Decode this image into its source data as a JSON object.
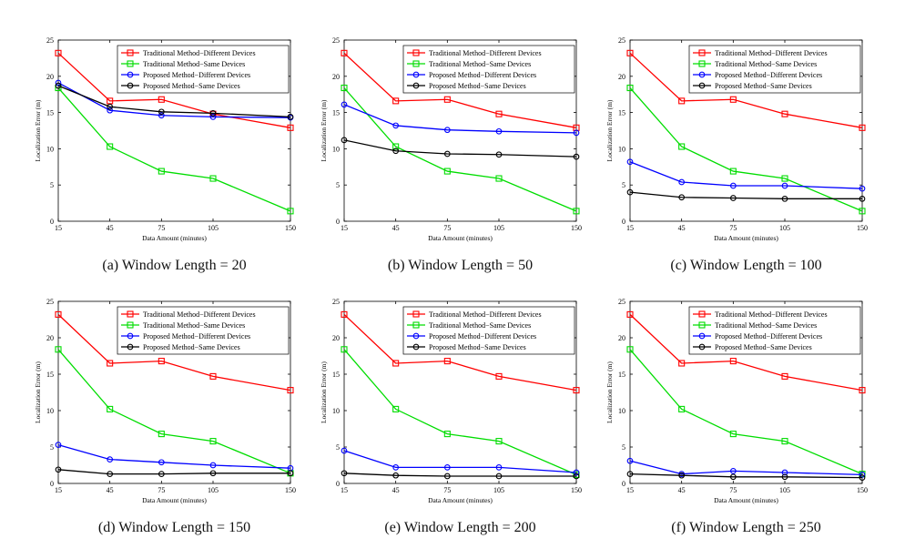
{
  "chart_data": [
    {
      "type": "line",
      "caption": "(a) Window Length = 20",
      "xlabel": "Data Amount (minutes)",
      "ylabel": "Localization Error (m)",
      "x": [
        15,
        45,
        75,
        105,
        150
      ],
      "xlim": [
        15,
        150
      ],
      "ylim": [
        0,
        25
      ],
      "yticks": [
        0,
        5,
        10,
        15,
        20,
        25
      ],
      "grid": false,
      "legend_position": "top-right",
      "series": [
        {
          "name": "Traditional Method−Different Devices",
          "color": "#ff0000",
          "marker": "square",
          "values": [
            23.2,
            16.6,
            16.8,
            14.8,
            12.9
          ]
        },
        {
          "name": "Traditional Method−Same Devices",
          "color": "#00dd00",
          "marker": "square",
          "values": [
            18.4,
            10.3,
            6.9,
            5.9,
            1.4
          ]
        },
        {
          "name": "Proposed Method−Different Devices",
          "color": "#0000ff",
          "marker": "circle",
          "values": [
            19.1,
            15.3,
            14.6,
            14.4,
            14.3
          ]
        },
        {
          "name": "Proposed Method−Same Devices",
          "color": "#000000",
          "marker": "circle",
          "values": [
            18.7,
            15.8,
            15.1,
            14.9,
            14.4
          ]
        }
      ]
    },
    {
      "type": "line",
      "caption": "(b) Window Length = 50",
      "xlabel": "Data Amount (minutes)",
      "ylabel": "Localization Error (m)",
      "x": [
        15,
        45,
        75,
        105,
        150
      ],
      "xlim": [
        15,
        150
      ],
      "ylim": [
        0,
        25
      ],
      "yticks": [
        0,
        5,
        10,
        15,
        20,
        25
      ],
      "grid": false,
      "legend_position": "top-right",
      "series": [
        {
          "name": "Traditional Method−Different Devices",
          "color": "#ff0000",
          "marker": "square",
          "values": [
            23.2,
            16.6,
            16.8,
            14.8,
            12.9
          ]
        },
        {
          "name": "Traditional Method−Same Devices",
          "color": "#00dd00",
          "marker": "square",
          "values": [
            18.4,
            10.3,
            6.9,
            5.9,
            1.4
          ]
        },
        {
          "name": "Proposed Method−Different Devices",
          "color": "#0000ff",
          "marker": "circle",
          "values": [
            16.1,
            13.2,
            12.6,
            12.4,
            12.2
          ]
        },
        {
          "name": "Proposed Method−Same Devices",
          "color": "#000000",
          "marker": "circle",
          "values": [
            11.2,
            9.7,
            9.3,
            9.2,
            8.9
          ]
        }
      ]
    },
    {
      "type": "line",
      "caption": "(c) Window Length = 100",
      "xlabel": "Data Amount (minutes)",
      "ylabel": "Localization Error (m)",
      "x": [
        15,
        45,
        75,
        105,
        150
      ],
      "xlim": [
        15,
        150
      ],
      "ylim": [
        0,
        25
      ],
      "yticks": [
        0,
        5,
        10,
        15,
        20,
        25
      ],
      "grid": false,
      "legend_position": "top-right",
      "series": [
        {
          "name": "Traditional Method−Different Devices",
          "color": "#ff0000",
          "marker": "square",
          "values": [
            23.2,
            16.6,
            16.8,
            14.8,
            12.9
          ]
        },
        {
          "name": "Traditional Method−Same Devices",
          "color": "#00dd00",
          "marker": "square",
          "values": [
            18.4,
            10.3,
            6.9,
            5.9,
            1.4
          ]
        },
        {
          "name": "Proposed Method−Different Devices",
          "color": "#0000ff",
          "marker": "circle",
          "values": [
            8.2,
            5.4,
            4.9,
            4.9,
            4.5
          ]
        },
        {
          "name": "Proposed Method−Same Devices",
          "color": "#000000",
          "marker": "circle",
          "values": [
            4.0,
            3.3,
            3.2,
            3.1,
            3.1
          ]
        }
      ]
    },
    {
      "type": "line",
      "caption": "(d) Window Length = 150",
      "xlabel": "Data Amount (minutes)",
      "ylabel": "Localization Error (m)",
      "x": [
        15,
        45,
        75,
        105,
        150
      ],
      "xlim": [
        15,
        150
      ],
      "ylim": [
        0,
        25
      ],
      "yticks": [
        0,
        5,
        10,
        15,
        20,
        25
      ],
      "grid": false,
      "legend_position": "top-right",
      "series": [
        {
          "name": "Traditional Method−Different Devices",
          "color": "#ff0000",
          "marker": "square",
          "values": [
            23.2,
            16.5,
            16.8,
            14.7,
            12.8
          ]
        },
        {
          "name": "Traditional Method−Same Devices",
          "color": "#00dd00",
          "marker": "square",
          "values": [
            18.4,
            10.2,
            6.8,
            5.8,
            1.4
          ]
        },
        {
          "name": "Proposed Method−Different Devices",
          "color": "#0000ff",
          "marker": "circle",
          "values": [
            5.3,
            3.3,
            2.9,
            2.5,
            2.1
          ]
        },
        {
          "name": "Proposed Method−Same Devices",
          "color": "#000000",
          "marker": "circle",
          "values": [
            1.9,
            1.3,
            1.3,
            1.4,
            1.4
          ]
        }
      ]
    },
    {
      "type": "line",
      "caption": "(e) Window Length = 200",
      "xlabel": "Data Amount (minutes)",
      "ylabel": "Localization Error (m)",
      "x": [
        15,
        45,
        75,
        105,
        150
      ],
      "xlim": [
        15,
        150
      ],
      "ylim": [
        0,
        25
      ],
      "yticks": [
        0,
        5,
        10,
        15,
        20,
        25
      ],
      "grid": false,
      "legend_position": "top-right",
      "series": [
        {
          "name": "Traditional Method−Different Devices",
          "color": "#ff0000",
          "marker": "square",
          "values": [
            23.2,
            16.5,
            16.8,
            14.7,
            12.8
          ]
        },
        {
          "name": "Traditional Method−Same Devices",
          "color": "#00dd00",
          "marker": "square",
          "values": [
            18.4,
            10.2,
            6.8,
            5.8,
            1.2
          ]
        },
        {
          "name": "Proposed Method−Different Devices",
          "color": "#0000ff",
          "marker": "circle",
          "values": [
            4.5,
            2.2,
            2.2,
            2.2,
            1.5
          ]
        },
        {
          "name": "Proposed Method−Same Devices",
          "color": "#000000",
          "marker": "circle",
          "values": [
            1.4,
            1.1,
            1.0,
            1.0,
            1.0
          ]
        }
      ]
    },
    {
      "type": "line",
      "caption": "(f) Window Length = 250",
      "xlabel": "Data Amount (minutes)",
      "ylabel": "Localization Error (m)",
      "x": [
        15,
        45,
        75,
        105,
        150
      ],
      "xlim": [
        15,
        150
      ],
      "ylim": [
        0,
        25
      ],
      "yticks": [
        0,
        5,
        10,
        15,
        20,
        25
      ],
      "grid": false,
      "legend_position": "top-right",
      "series": [
        {
          "name": "Traditional Method−Different Devices",
          "color": "#ff0000",
          "marker": "square",
          "values": [
            23.2,
            16.5,
            16.8,
            14.7,
            12.8
          ]
        },
        {
          "name": "Traditional Method−Same Devices",
          "color": "#00dd00",
          "marker": "square",
          "values": [
            18.4,
            10.2,
            6.8,
            5.8,
            1.3
          ]
        },
        {
          "name": "Proposed Method−Different Devices",
          "color": "#0000ff",
          "marker": "circle",
          "values": [
            3.1,
            1.3,
            1.7,
            1.5,
            1.2
          ]
        },
        {
          "name": "Proposed Method−Same Devices",
          "color": "#000000",
          "marker": "circle",
          "values": [
            1.3,
            1.1,
            0.9,
            0.9,
            0.8
          ]
        }
      ]
    }
  ]
}
